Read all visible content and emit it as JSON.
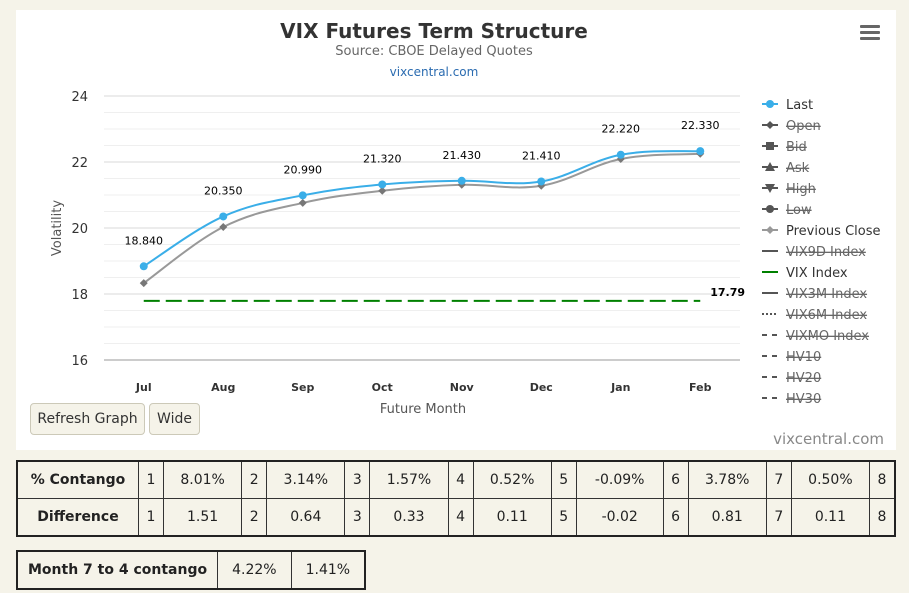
{
  "chart_data": {
    "type": "line",
    "title": "VIX Futures Term Structure",
    "subtitle": "Source: CBOE Delayed Quotes",
    "link_text": "vixcentral.com",
    "xlabel": "Future Month",
    "ylabel": "Volatility",
    "categories": [
      "Jul",
      "Aug",
      "Sep",
      "Oct",
      "Nov",
      "Dec",
      "Jan",
      "Feb"
    ],
    "ylim": [
      16,
      24
    ],
    "yticks": [
      16,
      18,
      20,
      22,
      24
    ],
    "series": [
      {
        "name": "Last",
        "color": "#3aaee8",
        "values": [
          18.84,
          20.35,
          20.99,
          21.32,
          21.43,
          21.41,
          22.22,
          22.33
        ],
        "labels": [
          "18.840",
          "20.350",
          "20.990",
          "21.320",
          "21.430",
          "21.410",
          "22.220",
          "22.330"
        ]
      },
      {
        "name": "Previous Close",
        "color": "#999999",
        "values": [
          18.33,
          20.03,
          20.76,
          21.13,
          21.31,
          21.28,
          22.09,
          22.25
        ]
      },
      {
        "name": "VIX Index",
        "color": "#008000",
        "value": 17.79,
        "label": "17.79"
      }
    ],
    "legend_position": "right",
    "legend": [
      {
        "name": "Last",
        "active": true,
        "color": "#3aaee8",
        "symbol": "circle"
      },
      {
        "name": "Open",
        "active": false,
        "color": "#555555",
        "symbol": "diamond"
      },
      {
        "name": "Bid",
        "active": false,
        "color": "#555555",
        "symbol": "square"
      },
      {
        "name": "Ask",
        "active": false,
        "color": "#555555",
        "symbol": "triangle"
      },
      {
        "name": "High",
        "active": false,
        "color": "#555555",
        "symbol": "triangle-down"
      },
      {
        "name": "Low",
        "active": false,
        "color": "#555555",
        "symbol": "circle"
      },
      {
        "name": "Previous Close",
        "active": true,
        "color": "#999999",
        "symbol": "diamond"
      },
      {
        "name": "VIX9D Index",
        "active": false,
        "color": "#555555",
        "symbol": "line"
      },
      {
        "name": "VIX Index",
        "active": true,
        "color": "#008000",
        "symbol": "line"
      },
      {
        "name": "VIX3M Index",
        "active": false,
        "color": "#555555",
        "symbol": "line"
      },
      {
        "name": "VIX6M Index",
        "active": false,
        "color": "#555555",
        "symbol": "dotted"
      },
      {
        "name": "VIXMO Index",
        "active": false,
        "color": "#555555",
        "symbol": "dashed"
      },
      {
        "name": "HV10",
        "active": false,
        "color": "#555555",
        "symbol": "dashed"
      },
      {
        "name": "HV20",
        "active": false,
        "color": "#555555",
        "symbol": "dashed"
      },
      {
        "name": "HV30",
        "active": false,
        "color": "#555555",
        "symbol": "dashed"
      }
    ]
  },
  "buttons": {
    "refresh": "Refresh Graph",
    "wide": "Wide"
  },
  "credit": "vixcentral.com",
  "table": {
    "rows": [
      {
        "label": "% Contango",
        "cells": [
          [
            "1",
            "8.01%"
          ],
          [
            "2",
            "3.14%"
          ],
          [
            "3",
            "1.57%"
          ],
          [
            "4",
            "0.52%"
          ],
          [
            "5",
            "-0.09%"
          ],
          [
            "6",
            "3.78%"
          ],
          [
            "7",
            "0.50%"
          ]
        ],
        "last_idx": "8"
      },
      {
        "label": "Difference",
        "cells": [
          [
            "1",
            "1.51"
          ],
          [
            "2",
            "0.64"
          ],
          [
            "3",
            "0.33"
          ],
          [
            "4",
            "0.11"
          ],
          [
            "5",
            "-0.02"
          ],
          [
            "6",
            "0.81"
          ],
          [
            "7",
            "0.11"
          ]
        ],
        "last_idx": "8"
      }
    ]
  },
  "month7to4": {
    "label": "Month 7 to 4 contango",
    "value1": "4.22%",
    "value2": "1.41%"
  }
}
